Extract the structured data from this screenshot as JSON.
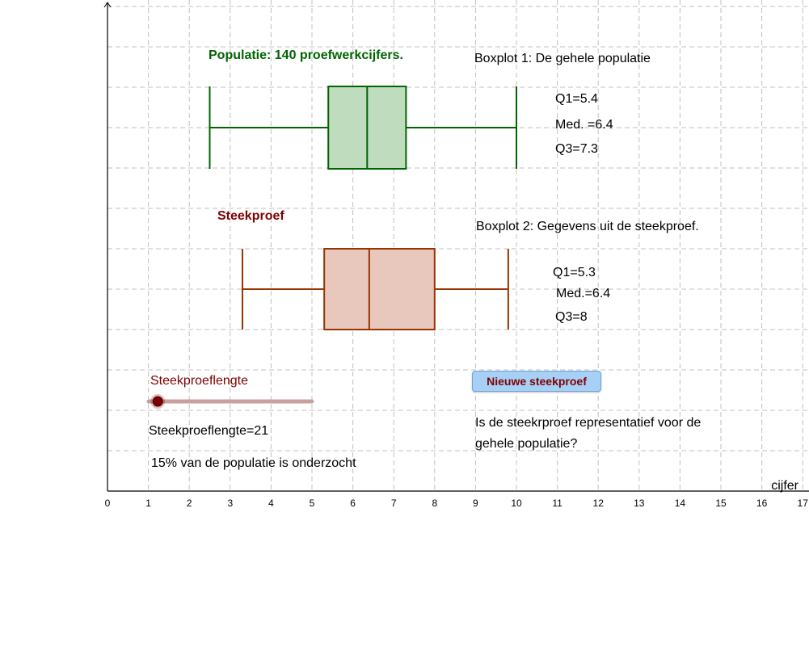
{
  "graph": {
    "x_axis_label": "cijfer",
    "x_ticks": [
      0,
      1,
      2,
      3,
      4,
      5,
      6,
      7,
      8,
      9,
      10,
      11,
      12,
      13,
      14,
      15,
      16,
      17
    ]
  },
  "boxplot1": {
    "title": "Populatie: 140 proefwerkcijfers.",
    "caption": "Boxplot 1: De gehele populatie",
    "q1_text": "Q1=5.4",
    "median_text": "Med. =6.4",
    "q3_text": "Q3=7.3",
    "min": 2.5,
    "q1": 5.4,
    "median": 6.35,
    "q3": 7.3,
    "max": 10,
    "stroke": "#006400",
    "fill": "#bfdcbf"
  },
  "boxplot2": {
    "title": "Steekproef",
    "caption": "Boxplot 2: Gegevens uit de steekproef.",
    "q1_text": "Q1=5.3",
    "median_text": "Med.=6.4",
    "q3_text": "Q3=8",
    "min": 3.3,
    "q1": 5.3,
    "median": 6.4,
    "q3": 8,
    "max": 9.8,
    "stroke": "#993300",
    "fill": "#e8c8bd"
  },
  "slider": {
    "label": "Steekproeflengte",
    "value_text": "Steekproeflengte=21",
    "value": 21,
    "min": 14,
    "max": 140,
    "track_color": "#c9a0a0",
    "handle_color": "#7f0000"
  },
  "percentage_text": "15% van de populatie is onderzocht",
  "new_sample_button": "Nieuwe steekproef",
  "question_line1": "Is de steekrproef representatief voor de",
  "question_line2": "gehele populatie?"
}
